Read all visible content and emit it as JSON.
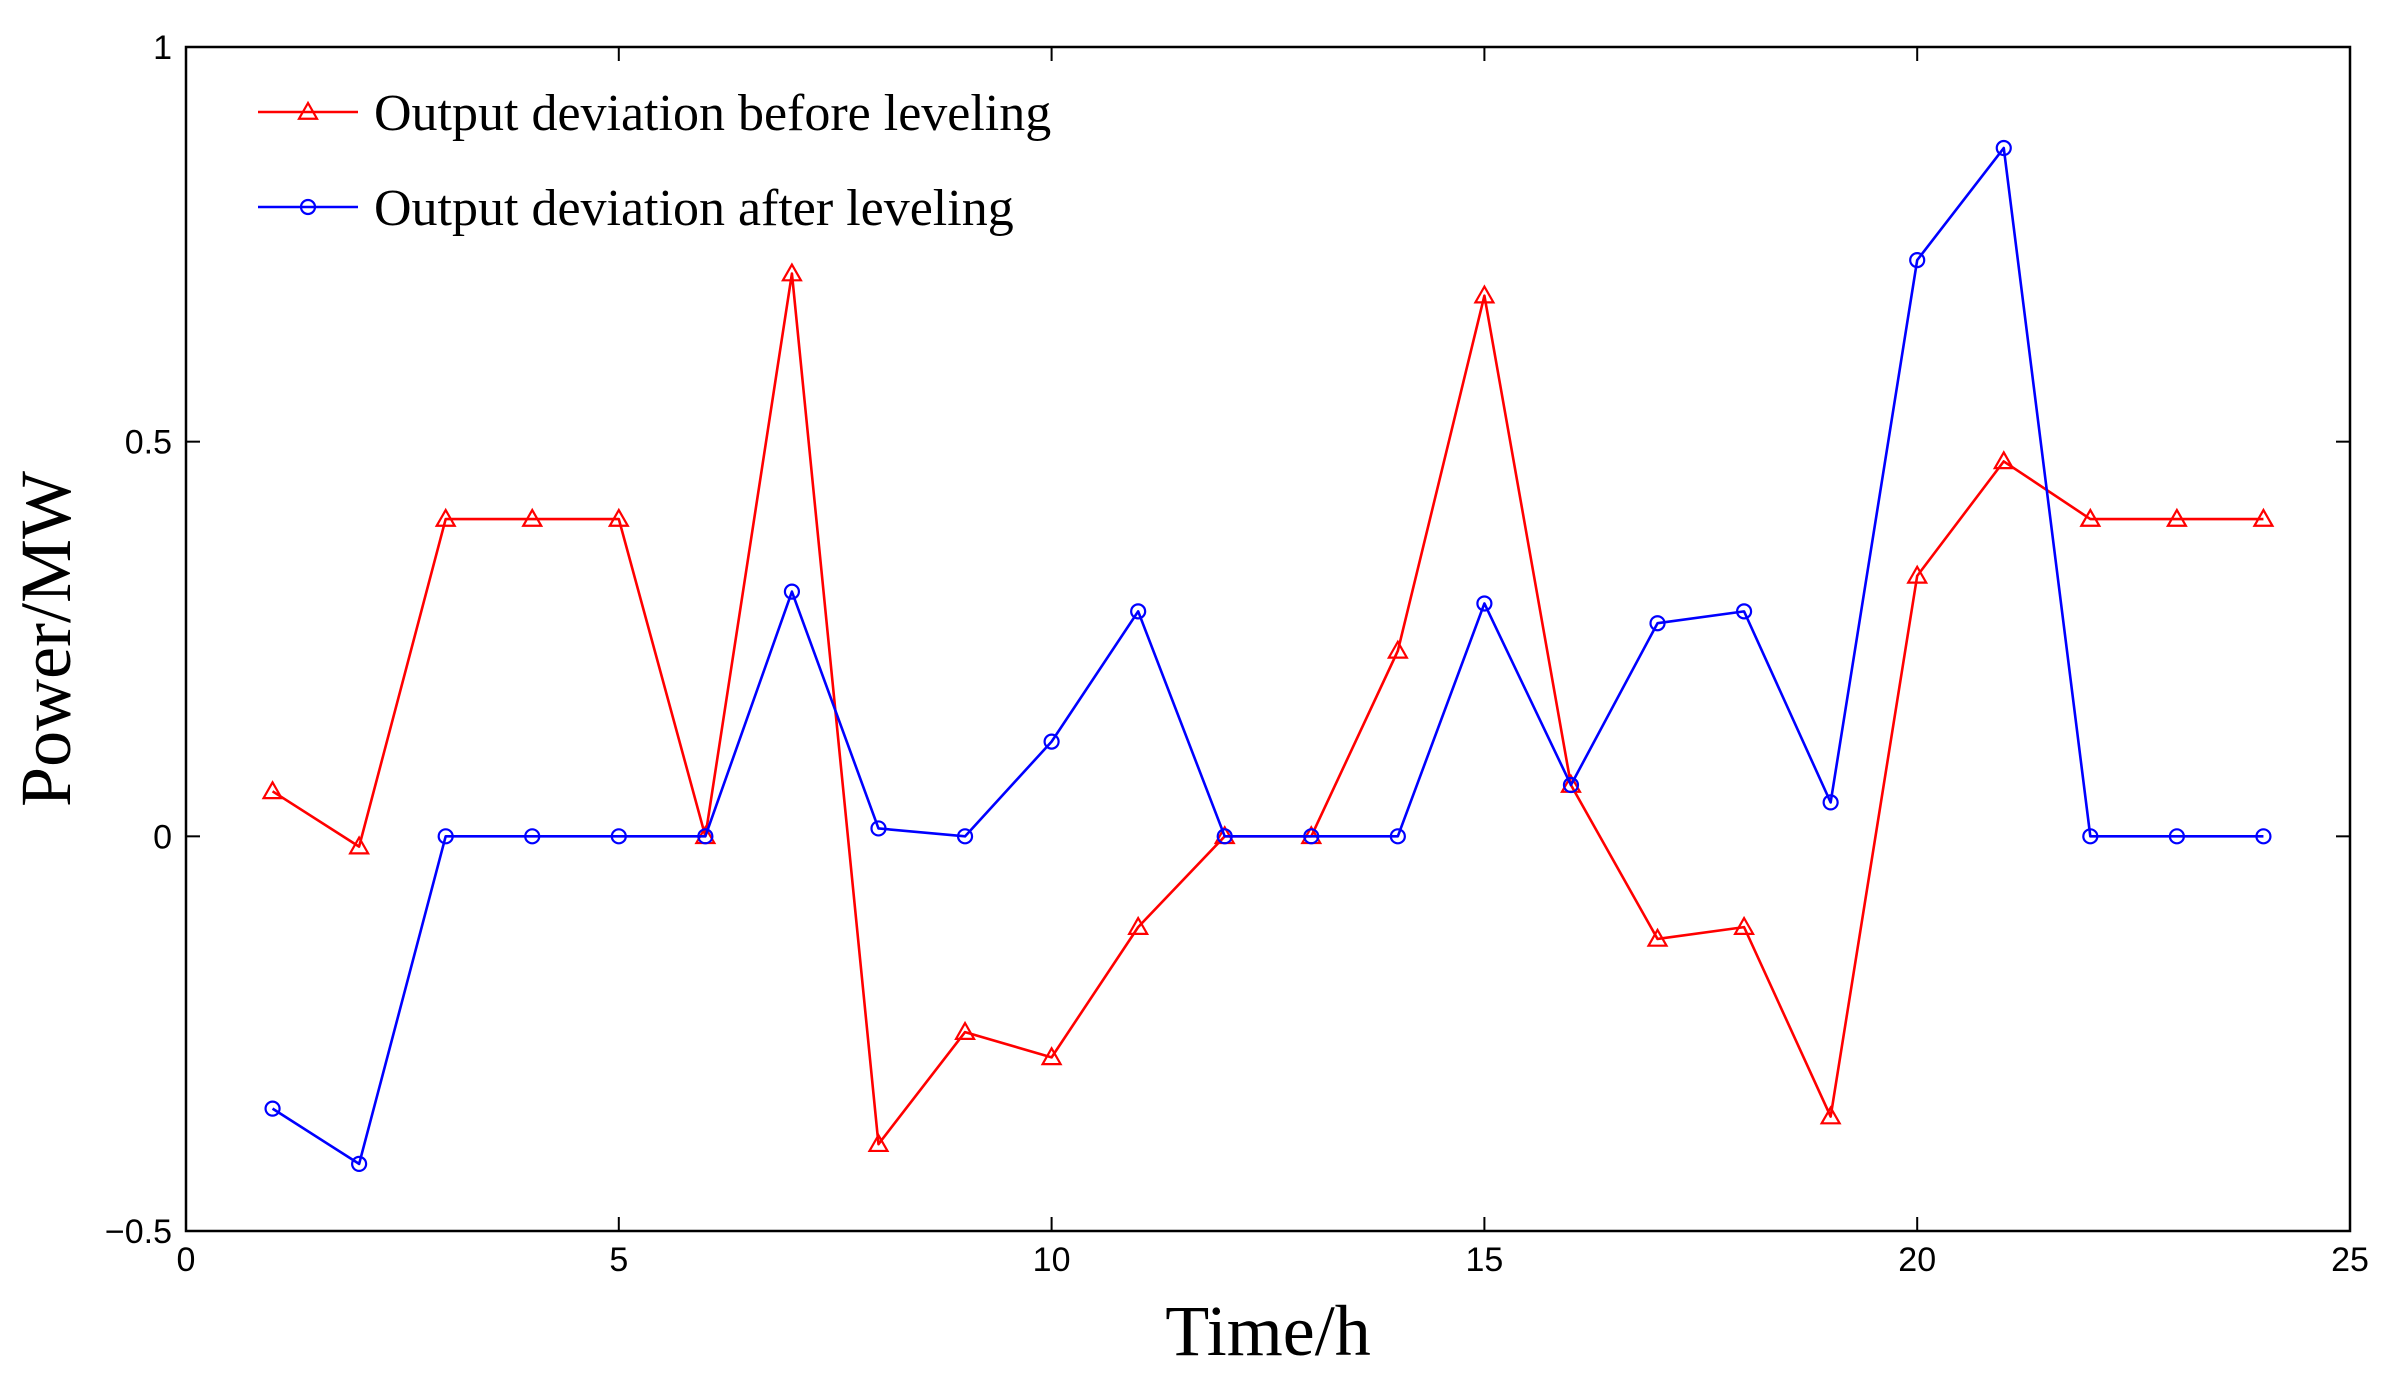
{
  "chart_data": {
    "type": "line",
    "title": "",
    "xlabel": "Time/h",
    "ylabel": "Power/MW",
    "xlim": [
      0,
      25
    ],
    "ylim": [
      -0.5,
      1
    ],
    "xticks": [
      0,
      5,
      10,
      15,
      20,
      25
    ],
    "yticks": [
      -0.5,
      0,
      0.5,
      1
    ],
    "xtick_labels": [
      "0",
      "5",
      "10",
      "15",
      "20",
      "25"
    ],
    "ytick_labels": [
      "−0.5",
      "0",
      "0.5",
      "1"
    ],
    "grid": false,
    "legend_position": "top-left",
    "x": [
      1,
      2,
      3,
      4,
      5,
      6,
      7,
      8,
      9,
      10,
      11,
      12,
      13,
      14,
      15,
      16,
      17,
      18,
      19,
      20,
      21,
      22,
      23,
      24
    ],
    "series": [
      {
        "name": "Output deviation before leveling",
        "color": "#ff0000",
        "marker": "triangle",
        "values": [
          0.057,
          -0.013,
          0.402,
          0.402,
          0.402,
          0.0,
          0.713,
          -0.39,
          -0.248,
          -0.28,
          -0.115,
          0.0,
          0.0,
          0.235,
          0.685,
          0.065,
          -0.13,
          -0.115,
          -0.355,
          0.33,
          0.475,
          0.402,
          0.402,
          0.402
        ]
      },
      {
        "name": "Output deviation after leveling",
        "color": "#0000ff",
        "marker": "circle",
        "values": [
          -0.345,
          -0.415,
          0.0,
          0.0,
          0.0,
          0.0,
          0.31,
          0.01,
          0.0,
          0.12,
          0.285,
          0.0,
          0.0,
          0.0,
          0.295,
          0.065,
          0.27,
          0.285,
          0.043,
          0.73,
          0.872,
          0.0,
          0.0,
          0.0
        ]
      }
    ]
  }
}
